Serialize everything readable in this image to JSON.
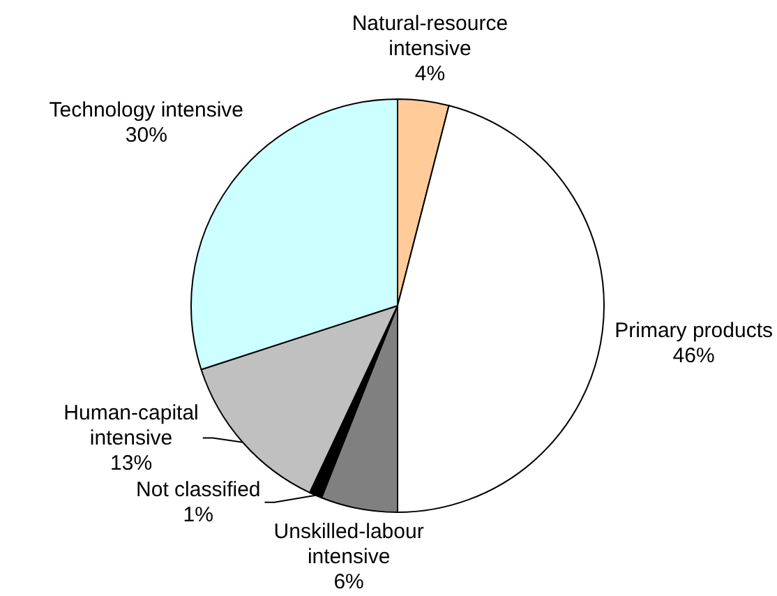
{
  "chart_data": {
    "type": "pie",
    "categories": [
      "Natural-resource intensive",
      "Primary products",
      "Unskilled-labour intensive",
      "Not classified",
      "Human-capital intensive",
      "Technology intensive"
    ],
    "values": [
      4,
      46,
      6,
      1,
      13,
      30
    ],
    "value_labels": [
      "4%",
      "46%",
      "6%",
      "1%",
      "13%",
      "30%"
    ],
    "colors": [
      "#ffcc99",
      "#ffffff",
      "#808080",
      "#000000",
      "#c0c0c0",
      "#ccffff"
    ],
    "legend": false
  }
}
